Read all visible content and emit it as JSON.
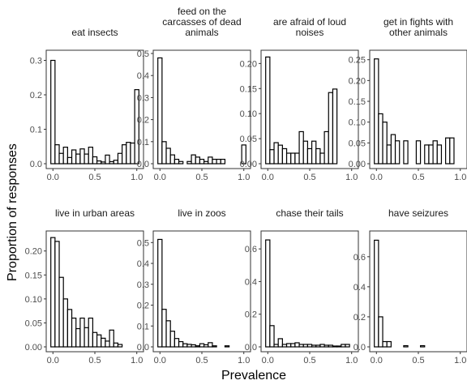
{
  "figure": {
    "ylabel": "Proportion of responses",
    "xlabel": "Prevalence"
  },
  "chart_data": [
    {
      "type": "bar",
      "title": "eat insects",
      "title_lines": [
        "eat insects"
      ],
      "x_ticks": [
        "0.0",
        "0.5",
        "1.0"
      ],
      "y_ticks": [
        "0.0",
        "0.1",
        "0.2",
        "0.3"
      ],
      "ylim": [
        0,
        0.32
      ],
      "bin_width": 0.05,
      "x_centers": [
        0.0,
        0.05,
        0.1,
        0.15,
        0.2,
        0.25,
        0.3,
        0.35,
        0.4,
        0.45,
        0.5,
        0.55,
        0.6,
        0.65,
        0.7,
        0.75,
        0.8,
        0.85,
        0.9,
        0.95,
        1.0
      ],
      "values": [
        0.3,
        0.055,
        0.03,
        0.048,
        0.018,
        0.04,
        0.028,
        0.043,
        0.028,
        0.048,
        0.02,
        0.008,
        0.005,
        0.025,
        0.006,
        0.01,
        0.03,
        0.055,
        0.062,
        0.06,
        0.215
      ]
    },
    {
      "type": "bar",
      "title": "feed on the carcasses of dead animals",
      "title_lines": [
        "feed on the",
        "carcasses of dead",
        "animals"
      ],
      "x_ticks": [
        "0.0",
        "0.5",
        "1.0"
      ],
      "y_ticks": [
        "0.0",
        "0.1",
        "0.2",
        "0.3",
        "0.4",
        "0.5"
      ],
      "ylim": [
        0,
        0.5
      ],
      "bin_width": 0.05,
      "x_centers": [
        0.0,
        0.05,
        0.1,
        0.15,
        0.2,
        0.25,
        0.3,
        0.35,
        0.4,
        0.45,
        0.5,
        0.55,
        0.6,
        0.65,
        0.7,
        0.75,
        0.8,
        0.85,
        0.9,
        0.95,
        1.0
      ],
      "values": [
        0.48,
        0.1,
        0.07,
        0.04,
        0.02,
        0.01,
        0.0,
        0.01,
        0.04,
        0.03,
        0.02,
        0.01,
        0.03,
        0.02,
        0.02,
        0.02,
        0.0,
        0.0,
        0.0,
        0.0,
        0.085
      ]
    },
    {
      "type": "bar",
      "title": "are afraid of loud noises",
      "title_lines": [
        "are afraid of loud",
        "noises"
      ],
      "x_ticks": [
        "0.0",
        "0.5",
        "1.0"
      ],
      "y_ticks": [
        "0.00",
        "0.05",
        "0.10",
        "0.15",
        "0.20"
      ],
      "ylim": [
        0,
        0.22
      ],
      "bin_width": 0.05,
      "x_centers": [
        0.0,
        0.05,
        0.1,
        0.15,
        0.2,
        0.25,
        0.3,
        0.35,
        0.4,
        0.45,
        0.5,
        0.55,
        0.6,
        0.65,
        0.7,
        0.75,
        0.8,
        0.85,
        0.9,
        0.95,
        1.0
      ],
      "values": [
        0.213,
        0.028,
        0.042,
        0.037,
        0.03,
        0.021,
        0.021,
        0.021,
        0.064,
        0.045,
        0.03,
        0.045,
        0.03,
        0.021,
        0.064,
        0.142,
        0.149,
        0.0,
        0.0,
        0.0,
        0.0
      ]
    },
    {
      "type": "bar",
      "title": "get in fights with other animals",
      "title_lines": [
        "get in fights with",
        "other animals"
      ],
      "x_ticks": [
        "0.0",
        "0.5",
        "1.0"
      ],
      "y_ticks": [
        "0.00",
        "0.05",
        "0.10",
        "0.15",
        "0.20",
        "0.25"
      ],
      "ylim": [
        0,
        0.265
      ],
      "bin_width": 0.05,
      "x_centers": [
        0.0,
        0.05,
        0.1,
        0.15,
        0.2,
        0.25,
        0.3,
        0.35,
        0.4,
        0.45,
        0.5,
        0.55,
        0.6,
        0.65,
        0.7,
        0.75,
        0.8,
        0.85,
        0.9,
        0.95,
        1.0
      ],
      "values": [
        0.252,
        0.12,
        0.1,
        0.045,
        0.07,
        0.055,
        0.0,
        0.055,
        0.0,
        0.0,
        0.055,
        0.0,
        0.045,
        0.045,
        0.055,
        0.045,
        0.0,
        0.062,
        0.062,
        0.0,
        0.0
      ]
    },
    {
      "type": "bar",
      "title": "live in urban areas",
      "title_lines": [
        "live in urban areas"
      ],
      "x_ticks": [
        "0.0",
        "0.5",
        "1.0"
      ],
      "y_ticks": [
        "0.00",
        "0.05",
        "0.10",
        "0.15",
        "0.20"
      ],
      "ylim": [
        0,
        0.235
      ],
      "bin_width": 0.05,
      "x_centers": [
        0.0,
        0.05,
        0.1,
        0.15,
        0.2,
        0.25,
        0.3,
        0.35,
        0.4,
        0.45,
        0.5,
        0.55,
        0.6,
        0.65,
        0.7,
        0.75,
        0.8,
        0.85,
        0.9,
        0.95,
        1.0
      ],
      "values": [
        0.228,
        0.22,
        0.145,
        0.1,
        0.078,
        0.06,
        0.038,
        0.06,
        0.04,
        0.06,
        0.03,
        0.025,
        0.018,
        0.012,
        0.035,
        0.008,
        0.005,
        0.0,
        0.0,
        0.0,
        0.0
      ]
    },
    {
      "type": "bar",
      "title": "live in zoos",
      "title_lines": [
        "live in zoos"
      ],
      "x_ticks": [
        "0.0",
        "0.5",
        "1.0"
      ],
      "y_ticks": [
        "0.0",
        "0.1",
        "0.2",
        "0.3",
        "0.4",
        "0.5"
      ],
      "ylim": [
        0,
        0.54
      ],
      "bin_width": 0.05,
      "x_centers": [
        0.0,
        0.05,
        0.1,
        0.15,
        0.2,
        0.25,
        0.3,
        0.35,
        0.4,
        0.45,
        0.5,
        0.55,
        0.6,
        0.65,
        0.7,
        0.75,
        0.8,
        0.85,
        0.9,
        0.95,
        1.0
      ],
      "values": [
        0.515,
        0.18,
        0.125,
        0.075,
        0.04,
        0.025,
        0.015,
        0.012,
        0.01,
        0.005,
        0.015,
        0.01,
        0.02,
        0.005,
        0.0,
        0.0,
        0.005,
        0.0,
        0.0,
        0.0,
        0.0
      ]
    },
    {
      "type": "bar",
      "title": "chase their tails",
      "title_lines": [
        "chase their tails"
      ],
      "x_ticks": [
        "0.0",
        "0.5",
        "1.0"
      ],
      "y_ticks": [
        "0.0",
        "0.2",
        "0.4",
        "0.6"
      ],
      "ylim": [
        0,
        0.69
      ],
      "bin_width": 0.05,
      "x_centers": [
        0.0,
        0.05,
        0.1,
        0.15,
        0.2,
        0.25,
        0.3,
        0.35,
        0.4,
        0.45,
        0.5,
        0.55,
        0.6,
        0.65,
        0.7,
        0.75,
        0.8,
        0.85,
        0.9,
        0.95,
        1.0
      ],
      "values": [
        0.655,
        0.13,
        0.015,
        0.05,
        0.015,
        0.02,
        0.02,
        0.025,
        0.015,
        0.015,
        0.015,
        0.01,
        0.01,
        0.015,
        0.01,
        0.01,
        0.005,
        0.005,
        0.015,
        0.015,
        0.0
      ]
    },
    {
      "type": "bar",
      "title": "have seizures",
      "title_lines": [
        "have seizures"
      ],
      "x_ticks": [
        "0.0",
        "0.5",
        "1.0"
      ],
      "y_ticks": [
        "0.0",
        "0.2",
        "0.4",
        "0.6"
      ],
      "ylim": [
        0,
        0.75
      ],
      "bin_width": 0.05,
      "x_centers": [
        0.0,
        0.05,
        0.1,
        0.15,
        0.2,
        0.25,
        0.3,
        0.35,
        0.4,
        0.45,
        0.5,
        0.55,
        0.6,
        0.65,
        0.7,
        0.75,
        0.8,
        0.85,
        0.9,
        0.95,
        1.0
      ],
      "values": [
        0.71,
        0.2,
        0.035,
        0.035,
        0.0,
        0.0,
        0.0,
        0.008,
        0.0,
        0.0,
        0.0,
        0.008,
        0.0,
        0.0,
        0.0,
        0.0,
        0.0,
        0.0,
        0.0,
        0.0,
        0.0
      ]
    }
  ]
}
